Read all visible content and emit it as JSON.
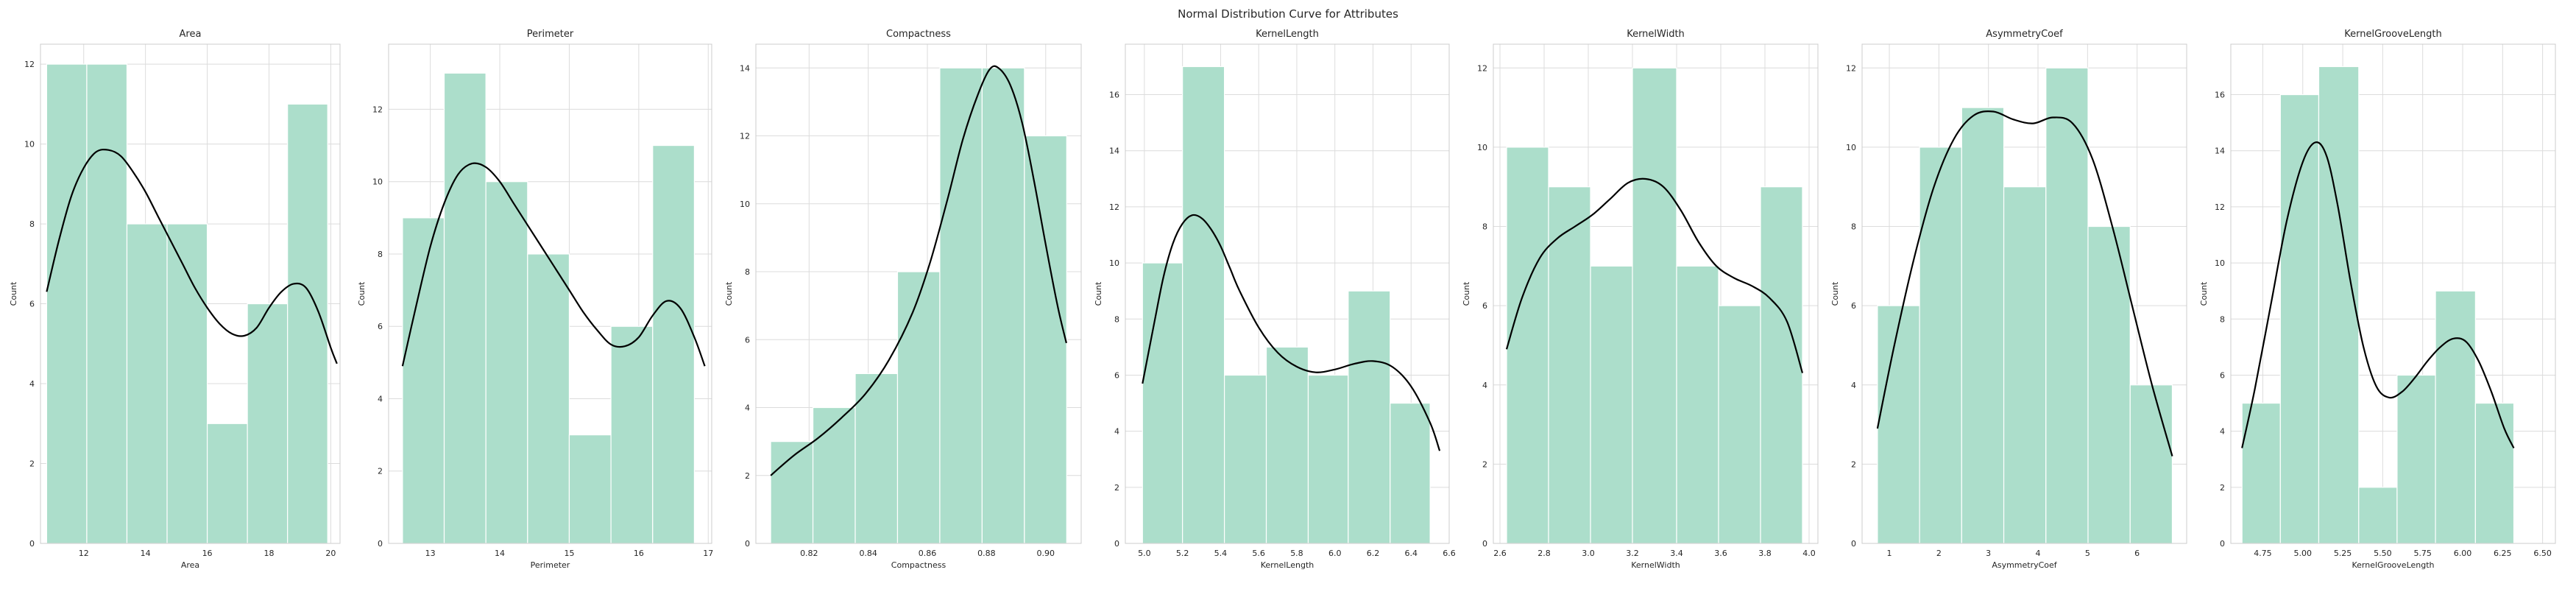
{
  "figure": {
    "title": "Normal Distribution Curve for Attributes"
  },
  "style": {
    "bar_fill": "#acdecb",
    "bar_edge": "#ffffff",
    "kde_color": "#000000",
    "grid_color": "#dcdcdc",
    "spine_color": "#cccccc"
  },
  "chart_data": [
    {
      "type": "bar",
      "title": "Area",
      "xlabel": "Area",
      "ylabel": "Count",
      "grid": true,
      "bins": [
        [
          10.8,
          12.1
        ],
        [
          12.1,
          13.4
        ],
        [
          13.4,
          14.7
        ],
        [
          14.7,
          16.0
        ],
        [
          16.0,
          17.3
        ],
        [
          17.3,
          18.6
        ],
        [
          18.6,
          19.9
        ]
      ],
      "values": [
        12,
        12,
        8,
        8,
        3,
        6,
        11
      ],
      "xlim": [
        10.6,
        20.3
      ],
      "ylim": [
        0,
        12.5
      ],
      "xticks": [
        12,
        14,
        16,
        18,
        20
      ],
      "yticks": [
        0,
        2,
        4,
        6,
        8,
        10,
        12
      ],
      "kde": [
        [
          10.8,
          6.3
        ],
        [
          11.2,
          7.6
        ],
        [
          11.6,
          8.7
        ],
        [
          12.0,
          9.4
        ],
        [
          12.4,
          9.8
        ],
        [
          12.8,
          9.85
        ],
        [
          13.2,
          9.7
        ],
        [
          13.6,
          9.3
        ],
        [
          14.0,
          8.8
        ],
        [
          14.4,
          8.2
        ],
        [
          14.8,
          7.6
        ],
        [
          15.2,
          7.0
        ],
        [
          15.6,
          6.4
        ],
        [
          16.0,
          5.9
        ],
        [
          16.4,
          5.5
        ],
        [
          16.8,
          5.25
        ],
        [
          17.2,
          5.2
        ],
        [
          17.6,
          5.4
        ],
        [
          18.0,
          5.9
        ],
        [
          18.4,
          6.3
        ],
        [
          18.8,
          6.5
        ],
        [
          19.2,
          6.4
        ],
        [
          19.6,
          5.8
        ],
        [
          20.0,
          4.9
        ],
        [
          20.2,
          4.5
        ]
      ]
    },
    {
      "type": "bar",
      "title": "Perimeter",
      "xlabel": "Perimeter",
      "ylabel": "Count",
      "grid": true,
      "bins": [
        [
          12.6,
          13.2
        ],
        [
          13.2,
          13.8
        ],
        [
          13.8,
          14.4
        ],
        [
          14.4,
          15.0
        ],
        [
          15.0,
          15.6
        ],
        [
          15.6,
          16.2
        ],
        [
          16.2,
          16.8
        ]
      ],
      "values": [
        9,
        13,
        10,
        8,
        3,
        6,
        11
      ],
      "xlim": [
        12.4,
        17.05
      ],
      "ylim": [
        0,
        13.8
      ],
      "xticks": [
        13,
        14,
        15,
        16,
        17
      ],
      "yticks": [
        0,
        2,
        4,
        6,
        8,
        10,
        12
      ],
      "kde": [
        [
          12.6,
          4.9
        ],
        [
          12.8,
          6.6
        ],
        [
          13.0,
          8.2
        ],
        [
          13.2,
          9.4
        ],
        [
          13.4,
          10.2
        ],
        [
          13.6,
          10.5
        ],
        [
          13.8,
          10.4
        ],
        [
          14.0,
          10.0
        ],
        [
          14.2,
          9.4
        ],
        [
          14.4,
          8.8
        ],
        [
          14.6,
          8.2
        ],
        [
          14.8,
          7.6
        ],
        [
          15.0,
          7.0
        ],
        [
          15.2,
          6.4
        ],
        [
          15.4,
          5.9
        ],
        [
          15.6,
          5.5
        ],
        [
          15.8,
          5.45
        ],
        [
          16.0,
          5.7
        ],
        [
          16.2,
          6.3
        ],
        [
          16.4,
          6.7
        ],
        [
          16.6,
          6.5
        ],
        [
          16.8,
          5.7
        ],
        [
          16.95,
          4.9
        ]
      ]
    },
    {
      "type": "bar",
      "title": "Compactness",
      "xlabel": "Compactness",
      "ylabel": "Count",
      "grid": true,
      "bins": [
        [
          0.807,
          0.8213
        ],
        [
          0.8213,
          0.8356
        ],
        [
          0.8356,
          0.8499
        ],
        [
          0.8499,
          0.8642
        ],
        [
          0.8642,
          0.8785
        ],
        [
          0.8785,
          0.8928
        ],
        [
          0.8928,
          0.9071
        ]
      ],
      "values": [
        3,
        4,
        5,
        8,
        14,
        14,
        12
      ],
      "xlim": [
        0.802,
        0.912
      ],
      "ylim": [
        0,
        14.7
      ],
      "xticks": [
        0.82,
        0.84,
        0.86,
        0.88,
        0.9
      ],
      "yticks": [
        0,
        2,
        4,
        6,
        8,
        10,
        12,
        14
      ],
      "kde": [
        [
          0.807,
          2.0
        ],
        [
          0.815,
          2.6
        ],
        [
          0.823,
          3.1
        ],
        [
          0.831,
          3.7
        ],
        [
          0.839,
          4.4
        ],
        [
          0.847,
          5.4
        ],
        [
          0.855,
          6.8
        ],
        [
          0.861,
          8.3
        ],
        [
          0.867,
          10.2
        ],
        [
          0.872,
          11.9
        ],
        [
          0.877,
          13.2
        ],
        [
          0.881,
          13.95
        ],
        [
          0.884,
          14.0
        ],
        [
          0.888,
          13.5
        ],
        [
          0.892,
          12.4
        ],
        [
          0.896,
          10.7
        ],
        [
          0.9,
          8.8
        ],
        [
          0.904,
          7.0
        ],
        [
          0.907,
          5.9
        ]
      ]
    },
    {
      "type": "bar",
      "title": "KernelLength",
      "xlabel": "KernelLength",
      "ylabel": "Count",
      "grid": true,
      "bins": [
        [
          4.99,
          5.2
        ],
        [
          5.2,
          5.42
        ],
        [
          5.42,
          5.64
        ],
        [
          5.64,
          5.86
        ],
        [
          5.86,
          6.07
        ],
        [
          6.07,
          6.29
        ],
        [
          6.29,
          6.5
        ]
      ],
      "values": [
        10,
        17,
        6,
        7,
        6,
        9,
        5
      ],
      "xlim": [
        4.9,
        6.6
      ],
      "ylim": [
        0,
        17.8
      ],
      "xticks": [
        5.0,
        5.2,
        5.4,
        5.6,
        5.8,
        6.0,
        6.2,
        6.4,
        6.6
      ],
      "yticks": [
        0,
        2,
        4,
        6,
        8,
        10,
        12,
        14,
        16
      ],
      "kde": [
        [
          4.99,
          5.7
        ],
        [
          5.05,
          7.8
        ],
        [
          5.1,
          9.5
        ],
        [
          5.15,
          10.7
        ],
        [
          5.2,
          11.4
        ],
        [
          5.25,
          11.7
        ],
        [
          5.3,
          11.6
        ],
        [
          5.35,
          11.2
        ],
        [
          5.4,
          10.6
        ],
        [
          5.45,
          9.8
        ],
        [
          5.5,
          9.0
        ],
        [
          5.6,
          7.7
        ],
        [
          5.7,
          6.8
        ],
        [
          5.8,
          6.3
        ],
        [
          5.9,
          6.1
        ],
        [
          6.0,
          6.2
        ],
        [
          6.1,
          6.4
        ],
        [
          6.2,
          6.5
        ],
        [
          6.3,
          6.3
        ],
        [
          6.4,
          5.6
        ],
        [
          6.5,
          4.3
        ],
        [
          6.55,
          3.3
        ]
      ]
    },
    {
      "type": "bar",
      "title": "KernelWidth",
      "xlabel": "KernelWidth",
      "ylabel": "Count",
      "grid": true,
      "bins": [
        [
          2.63,
          2.82
        ],
        [
          2.82,
          3.01
        ],
        [
          3.01,
          3.2
        ],
        [
          3.2,
          3.4
        ],
        [
          3.4,
          3.59
        ],
        [
          3.59,
          3.78
        ],
        [
          3.78,
          3.97
        ]
      ],
      "values": [
        10,
        9,
        7,
        12,
        7,
        6,
        9
      ],
      "xlim": [
        2.57,
        4.04
      ],
      "ylim": [
        0,
        12.6
      ],
      "xticks": [
        2.6,
        2.8,
        3.0,
        3.2,
        3.4,
        3.6,
        3.8,
        4.0
      ],
      "yticks": [
        0,
        2,
        4,
        6,
        8,
        10,
        12
      ],
      "kde": [
        [
          2.63,
          4.9
        ],
        [
          2.7,
          6.2
        ],
        [
          2.78,
          7.2
        ],
        [
          2.86,
          7.7
        ],
        [
          2.94,
          8.0
        ],
        [
          3.02,
          8.3
        ],
        [
          3.1,
          8.7
        ],
        [
          3.18,
          9.1
        ],
        [
          3.26,
          9.2
        ],
        [
          3.34,
          9.0
        ],
        [
          3.42,
          8.4
        ],
        [
          3.5,
          7.6
        ],
        [
          3.58,
          7.0
        ],
        [
          3.66,
          6.7
        ],
        [
          3.74,
          6.5
        ],
        [
          3.82,
          6.2
        ],
        [
          3.9,
          5.6
        ],
        [
          3.97,
          4.3
        ]
      ]
    },
    {
      "type": "bar",
      "title": "AsymmetryCoef",
      "xlabel": "AsymmetryCoef",
      "ylabel": "Count",
      "grid": true,
      "bins": [
        [
          0.76,
          1.61
        ],
        [
          1.61,
          2.46
        ],
        [
          2.46,
          3.31
        ],
        [
          3.31,
          4.16
        ],
        [
          4.16,
          5.01
        ],
        [
          5.01,
          5.86
        ],
        [
          5.86,
          6.71
        ]
      ],
      "values": [
        6,
        10,
        11,
        9,
        12,
        8,
        4
      ],
      "xlim": [
        0.45,
        7.0
      ],
      "ylim": [
        0,
        12.6
      ],
      "xticks": [
        1,
        2,
        3,
        4,
        5,
        6
      ],
      "yticks": [
        0,
        2,
        4,
        6,
        8,
        10,
        12
      ],
      "kde": [
        [
          0.76,
          2.9
        ],
        [
          1.1,
          5.0
        ],
        [
          1.5,
          7.2
        ],
        [
          1.9,
          9.0
        ],
        [
          2.3,
          10.2
        ],
        [
          2.7,
          10.8
        ],
        [
          3.1,
          10.9
        ],
        [
          3.5,
          10.7
        ],
        [
          3.9,
          10.6
        ],
        [
          4.3,
          10.75
        ],
        [
          4.7,
          10.6
        ],
        [
          5.1,
          9.7
        ],
        [
          5.5,
          8.0
        ],
        [
          5.9,
          6.0
        ],
        [
          6.3,
          4.0
        ],
        [
          6.71,
          2.2
        ]
      ]
    },
    {
      "type": "bar",
      "title": "KernelGrooveLength",
      "xlabel": "KernelGrooveLength",
      "ylabel": "Count",
      "grid": true,
      "bins": [
        [
          4.62,
          4.86
        ],
        [
          4.86,
          5.1
        ],
        [
          5.1,
          5.35
        ],
        [
          5.35,
          5.59
        ],
        [
          5.59,
          5.83
        ],
        [
          5.83,
          6.08
        ],
        [
          6.08,
          6.32
        ]
      ],
      "values": [
        5,
        16,
        17,
        2,
        6,
        9,
        5
      ],
      "xlim": [
        4.55,
        6.58
      ],
      "ylim": [
        0,
        17.8
      ],
      "xticks": [
        4.75,
        5.0,
        5.25,
        5.5,
        5.75,
        6.0,
        6.25,
        6.5
      ],
      "yticks": [
        0,
        2,
        4,
        6,
        8,
        10,
        12,
        14,
        16
      ],
      "kde": [
        [
          4.62,
          3.4
        ],
        [
          4.7,
          5.5
        ],
        [
          4.8,
          8.5
        ],
        [
          4.9,
          11.5
        ],
        [
          5.0,
          13.6
        ],
        [
          5.08,
          14.3
        ],
        [
          5.15,
          13.8
        ],
        [
          5.22,
          12.0
        ],
        [
          5.3,
          9.3
        ],
        [
          5.38,
          7.0
        ],
        [
          5.46,
          5.6
        ],
        [
          5.54,
          5.2
        ],
        [
          5.62,
          5.4
        ],
        [
          5.7,
          5.9
        ],
        [
          5.78,
          6.5
        ],
        [
          5.86,
          7.0
        ],
        [
          5.94,
          7.3
        ],
        [
          6.02,
          7.2
        ],
        [
          6.1,
          6.5
        ],
        [
          6.18,
          5.4
        ],
        [
          6.26,
          4.1
        ],
        [
          6.32,
          3.4
        ]
      ]
    }
  ]
}
